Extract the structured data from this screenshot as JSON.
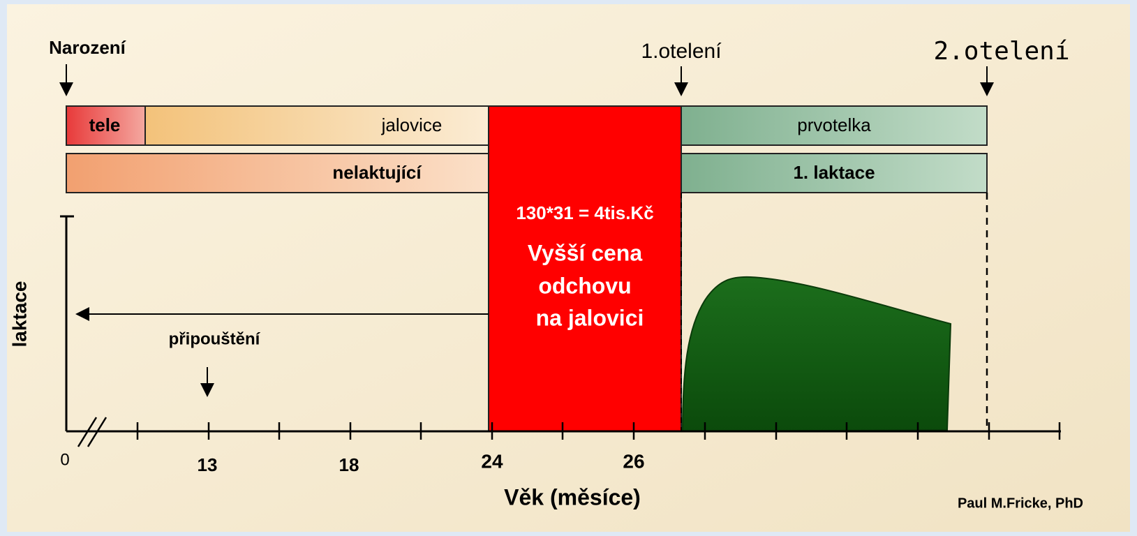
{
  "markers": {
    "birth": "Narození",
    "first_calving": "1.otelení",
    "second_calving": "2.otelení"
  },
  "bars": {
    "calf": "tele",
    "heifer": "jalovice",
    "primiparous": "prvotelka",
    "non_lactating": "nelaktující",
    "first_lactation": "1. laktace"
  },
  "highlight": {
    "formula": "130*31 = 4tis.Kč",
    "lines": [
      "Vyšší cena",
      "odchovu",
      "na jalovici"
    ]
  },
  "y_axis_label": "laktace",
  "breeding": "připouštění",
  "x_axis": {
    "labels": [
      "0",
      "13",
      "18",
      "24",
      "26"
    ],
    "title": "Věk (měsíce)"
  },
  "credit": "Paul M.Fricke, PhD"
}
